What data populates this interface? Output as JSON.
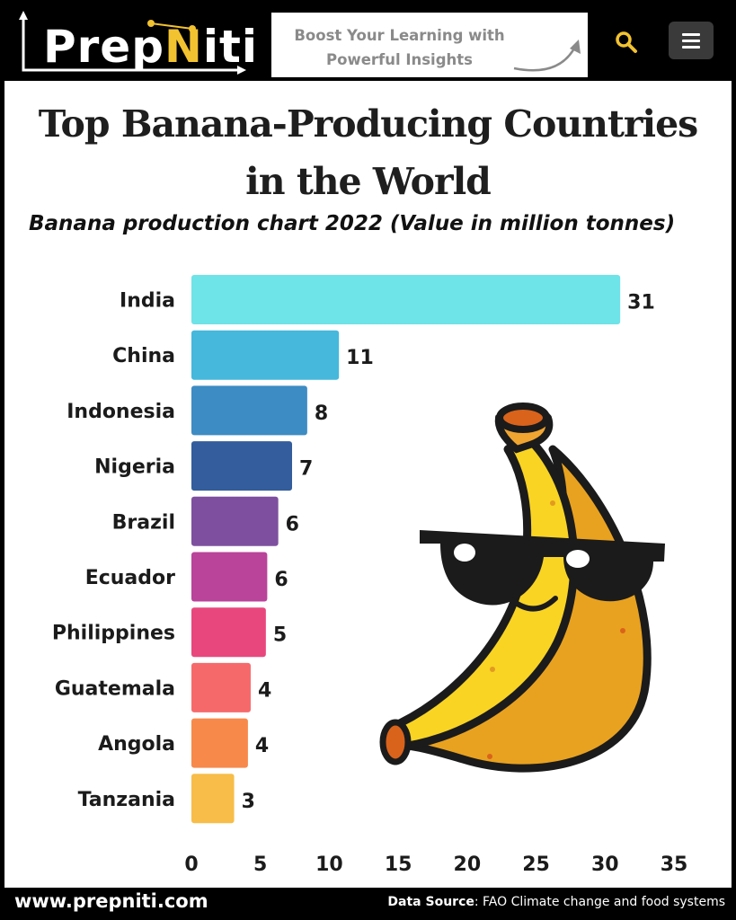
{
  "header": {
    "logo_text_before": "Prep",
    "logo_text_n": "N",
    "logo_text_after": "iti",
    "tagline_line1": "Boost Your Learning  with",
    "tagline_line2": "Powerful Insights",
    "search_icon": "search-icon",
    "menu_icon": "hamburger-menu-icon"
  },
  "colors": {
    "brand_yellow": "#f2c230",
    "background": "#ffffff",
    "frame": "#000000"
  },
  "chart_data": {
    "type": "bar",
    "orientation": "horizontal",
    "title_line1": "Top Banana-Producing Countries",
    "title_line2": "in the World",
    "subtitle": "Banana production chart 2022 (Value in million tonnes)",
    "categories": [
      "India",
      "China",
      "Indonesia",
      "Nigeria",
      "Brazil",
      "Ecuador",
      "Philippines",
      "Guatemala",
      "Angola",
      "Tanzania"
    ],
    "values": [
      31,
      11,
      8,
      7,
      6,
      6,
      5,
      4,
      4,
      3
    ],
    "bar_lengths": [
      31.1,
      10.7,
      8.4,
      7.3,
      6.3,
      5.5,
      5.4,
      4.3,
      4.1,
      3.1
    ],
    "data_labels": [
      "31",
      "11",
      "8",
      "7",
      "6",
      "6",
      "5",
      "4",
      "4",
      "3"
    ],
    "bar_colors": [
      "#6ee3e8",
      "#45b8dc",
      "#3d8cc3",
      "#335d9c",
      "#7e4f9f",
      "#b9449a",
      "#e8477e",
      "#f6696b",
      "#f7894a",
      "#f7bd48"
    ],
    "xlim": [
      0,
      35
    ],
    "xticks": [
      "0",
      "5",
      "10",
      "15",
      "20",
      "25",
      "30",
      "35"
    ],
    "grid": false,
    "legend": "none"
  },
  "illustration": "cool-banana-with-sunglasses",
  "footer": {
    "url": "www.prepniti.com",
    "source_label": "Data Source",
    "source_text": ": FAO Climate change and food systems"
  }
}
